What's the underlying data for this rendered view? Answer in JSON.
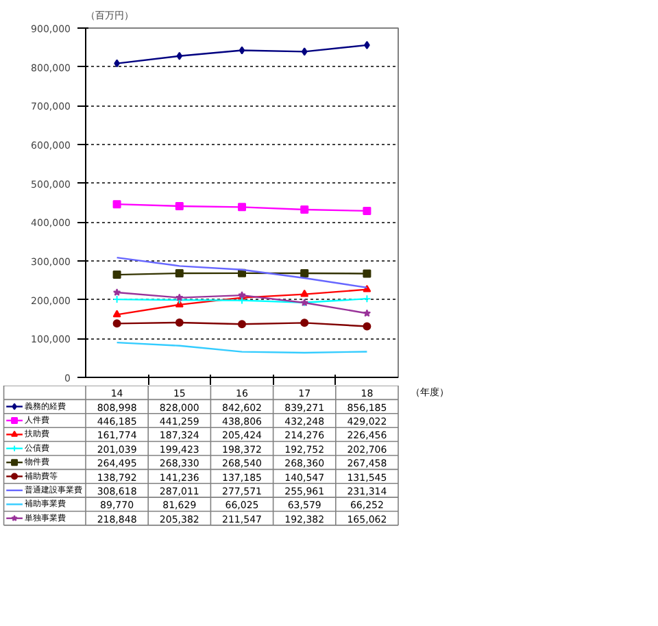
{
  "chart_data": {
    "type": "line",
    "ylabel": "（百万円）",
    "xlabel": "（年度）",
    "categories": [
      "14",
      "15",
      "16",
      "17",
      "18"
    ],
    "ylim": [
      0,
      900000
    ],
    "yticks": [
      {
        "value": 0,
        "label": "0"
      },
      {
        "value": 100000,
        "label": "100,000"
      },
      {
        "value": 200000,
        "label": "200,000"
      },
      {
        "value": 300000,
        "label": "300,000"
      },
      {
        "value": 400000,
        "label": "400,000"
      },
      {
        "value": 500000,
        "label": "500,000"
      },
      {
        "value": 600000,
        "label": "600,000"
      },
      {
        "value": 700000,
        "label": "700,000"
      },
      {
        "value": 800000,
        "label": "800,000"
      },
      {
        "value": 900000,
        "label": "900,000"
      }
    ],
    "grid": "y",
    "tick_labels": "y",
    "legend": "bottom",
    "series": [
      {
        "name": "義務的経費",
        "color": "#000080",
        "marker": "diamond",
        "values": [
          808998,
          828000,
          842602,
          839271,
          856185
        ],
        "value_labels": [
          "808,998",
          "828,000",
          "842,602",
          "839,271",
          "856,185"
        ]
      },
      {
        "name": "人件費",
        "color": "#ff00ff",
        "marker": "square",
        "values": [
          446185,
          441259,
          438806,
          432248,
          429022
        ],
        "value_labels": [
          "446,185",
          "441,259",
          "438,806",
          "432,248",
          "429,022"
        ]
      },
      {
        "name": "扶助費",
        "color": "#ff0000",
        "marker": "triangle",
        "values": [
          161774,
          187324,
          205424,
          214276,
          226456
        ],
        "value_labels": [
          "161,774",
          "187,324",
          "205,424",
          "214,276",
          "226,456"
        ]
      },
      {
        "name": "公債費",
        "color": "#00ffff",
        "marker": "cross",
        "values": [
          201039,
          199423,
          198372,
          192752,
          202706
        ],
        "value_labels": [
          "201,039",
          "199,423",
          "198,372",
          "192,752",
          "202,706"
        ]
      },
      {
        "name": "物件費",
        "color": "#333300",
        "marker": "square",
        "values": [
          264495,
          268330,
          268540,
          268360,
          267458
        ],
        "value_labels": [
          "264,495",
          "268,330",
          "268,540",
          "268,360",
          "267,458"
        ]
      },
      {
        "name": "補助費等",
        "color": "#800000",
        "marker": "circle",
        "values": [
          138792,
          141236,
          137185,
          140547,
          131545
        ],
        "value_labels": [
          "138,792",
          "141,236",
          "137,185",
          "140,547",
          "131,545"
        ]
      },
      {
        "name": "普通建設事業費",
        "color": "#6666ff",
        "marker": "none",
        "values": [
          308618,
          287011,
          277571,
          255961,
          231314
        ],
        "value_labels": [
          "308,618",
          "287,011",
          "277,571",
          "255,961",
          "231,314"
        ]
      },
      {
        "name": "補助事業費",
        "color": "#33ccff",
        "marker": "none",
        "values": [
          89770,
          81629,
          66025,
          63579,
          66252
        ],
        "value_labels": [
          "89,770",
          "81,629",
          "66,025",
          "63,579",
          "66,252"
        ]
      },
      {
        "name": "単独事業費",
        "color": "#993399",
        "marker": "star",
        "values": [
          218848,
          205382,
          211547,
          192382,
          165062
        ],
        "value_labels": [
          "218,848",
          "205,382",
          "211,547",
          "192,382",
          "165,062"
        ]
      }
    ]
  }
}
